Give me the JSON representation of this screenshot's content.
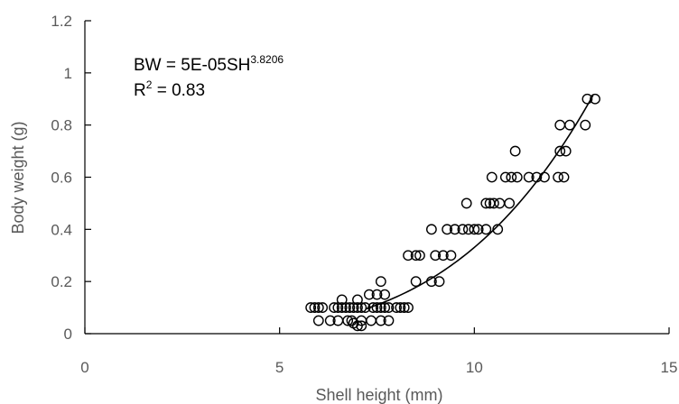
{
  "chart_data": {
    "type": "scatter",
    "title": "",
    "xlabel": "Shell height (mm)",
    "ylabel": "Body weight (g)",
    "xlim": [
      0,
      15
    ],
    "ylim": [
      0,
      1.2
    ],
    "xticks": [
      "0",
      "5",
      "10",
      "15"
    ],
    "yticks": [
      "0",
      "0.2",
      "0.4",
      "0.6",
      "0.8",
      "1",
      "1.2"
    ],
    "grid": false,
    "legend": "none",
    "equation": {
      "prefix": "BW = 5E-05SH",
      "exponent": "3.8206",
      "r2_label": "R",
      "r2_sup": "2",
      "r2_value": " = 0.83"
    },
    "trendline": {
      "type": "power",
      "coefficient": 5e-05,
      "exponent": 3.8206,
      "x_start": 7.2,
      "x_end": 13.05
    },
    "marker": {
      "shape": "open-circle",
      "stroke": "#000000"
    },
    "series": [
      {
        "points": [
          [
            5.8,
            0.1
          ],
          [
            5.9,
            0.1
          ],
          [
            6.0,
            0.1
          ],
          [
            6.1,
            0.1
          ],
          [
            6.4,
            0.1
          ],
          [
            6.5,
            0.1
          ],
          [
            6.6,
            0.1
          ],
          [
            6.7,
            0.1
          ],
          [
            6.8,
            0.1
          ],
          [
            6.9,
            0.1
          ],
          [
            7.0,
            0.1
          ],
          [
            7.1,
            0.1
          ],
          [
            7.2,
            0.1
          ],
          [
            7.4,
            0.1
          ],
          [
            7.5,
            0.1
          ],
          [
            7.6,
            0.1
          ],
          [
            7.7,
            0.1
          ],
          [
            7.8,
            0.1
          ],
          [
            8.0,
            0.1
          ],
          [
            8.1,
            0.1
          ],
          [
            8.2,
            0.1
          ],
          [
            8.3,
            0.1
          ],
          [
            6.0,
            0.05
          ],
          [
            6.3,
            0.05
          ],
          [
            6.5,
            0.05
          ],
          [
            6.75,
            0.05
          ],
          [
            6.85,
            0.05
          ],
          [
            7.1,
            0.05
          ],
          [
            7.35,
            0.05
          ],
          [
            7.6,
            0.05
          ],
          [
            7.8,
            0.05
          ],
          [
            7.0,
            0.03
          ],
          [
            7.1,
            0.03
          ],
          [
            6.9,
            0.04
          ],
          [
            6.6,
            0.13
          ],
          [
            7.0,
            0.13
          ],
          [
            7.3,
            0.15
          ],
          [
            7.5,
            0.15
          ],
          [
            7.7,
            0.15
          ],
          [
            7.6,
            0.2
          ],
          [
            8.3,
            0.3
          ],
          [
            8.5,
            0.3
          ],
          [
            8.6,
            0.3
          ],
          [
            8.5,
            0.2
          ],
          [
            8.9,
            0.2
          ],
          [
            9.1,
            0.2
          ],
          [
            8.9,
            0.4
          ],
          [
            9.0,
            0.3
          ],
          [
            9.2,
            0.3
          ],
          [
            9.4,
            0.3
          ],
          [
            9.3,
            0.4
          ],
          [
            9.5,
            0.4
          ],
          [
            9.7,
            0.4
          ],
          [
            9.8,
            0.5
          ],
          [
            9.85,
            0.4
          ],
          [
            10.0,
            0.4
          ],
          [
            10.1,
            0.4
          ],
          [
            10.3,
            0.4
          ],
          [
            10.6,
            0.4
          ],
          [
            10.3,
            0.5
          ],
          [
            10.4,
            0.5
          ],
          [
            10.5,
            0.5
          ],
          [
            10.65,
            0.5
          ],
          [
            10.9,
            0.5
          ],
          [
            10.45,
            0.6
          ],
          [
            10.8,
            0.6
          ],
          [
            10.95,
            0.6
          ],
          [
            11.1,
            0.6
          ],
          [
            11.05,
            0.7
          ],
          [
            11.4,
            0.6
          ],
          [
            11.6,
            0.6
          ],
          [
            11.8,
            0.6
          ],
          [
            12.15,
            0.6
          ],
          [
            12.3,
            0.6
          ],
          [
            12.2,
            0.7
          ],
          [
            12.35,
            0.7
          ],
          [
            12.2,
            0.8
          ],
          [
            12.45,
            0.8
          ],
          [
            12.85,
            0.8
          ],
          [
            12.9,
            0.9
          ],
          [
            13.1,
            0.9
          ]
        ]
      }
    ]
  }
}
